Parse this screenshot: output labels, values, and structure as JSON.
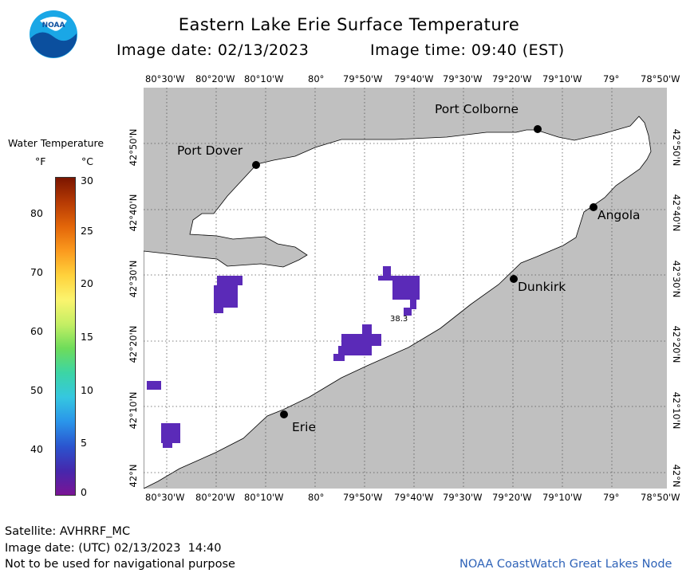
{
  "header": {
    "title": "Eastern Lake Erie Surface Temperature",
    "image_date": "Image date: 02/13/2023",
    "image_time": "Image time: 09:40 (EST)"
  },
  "logo": {
    "text": "NOAA"
  },
  "legend": {
    "title": "Water Temperature",
    "unit_f": "°F",
    "unit_c": "°C",
    "f_ticks": [
      "80",
      "70",
      "60",
      "50",
      "40"
    ],
    "c_ticks": [
      "30",
      "25",
      "20",
      "15",
      "10",
      "5",
      "0"
    ],
    "colors": [
      "#7b1500",
      "#b63a04",
      "#e36609",
      "#fb9a1e",
      "#ffd23c",
      "#fbf46e",
      "#c4ef64",
      "#6edc5a",
      "#3cd5a5",
      "#35c7e0",
      "#2a95ea",
      "#2a55cf",
      "#4528ad",
      "#7a1495"
    ]
  },
  "map": {
    "lon_labels": [
      "80°30'W",
      "80°20'W",
      "80°10'W",
      "80°",
      "79°50'W",
      "79°40'W",
      "79°30'W",
      "79°20'W",
      "79°10'W",
      "79°",
      "78°50'W"
    ],
    "lat_labels": [
      "42°50'N",
      "42°40'N",
      "42°30'N",
      "42°20'N",
      "42°10'N",
      "42°N"
    ],
    "cities": [
      {
        "name": "Port Colborne"
      },
      {
        "name": "Port Dover"
      },
      {
        "name": "Angola"
      },
      {
        "name": "Dunkirk"
      },
      {
        "name": "Erie"
      }
    ],
    "temp_label": "38.3",
    "colors": {
      "land": "#c0c0c0",
      "water": "#ffffff",
      "cold_patch": "#5b2ab8",
      "grid": "#555555"
    }
  },
  "footer": {
    "satellite": "Satellite: AVHRRF_MC",
    "utc_date": "Image date: (UTC) 02/13/2023  14:40",
    "disclaimer": "Not to be used for navigational purpose",
    "credit": "NOAA CoastWatch Great Lakes Node"
  }
}
